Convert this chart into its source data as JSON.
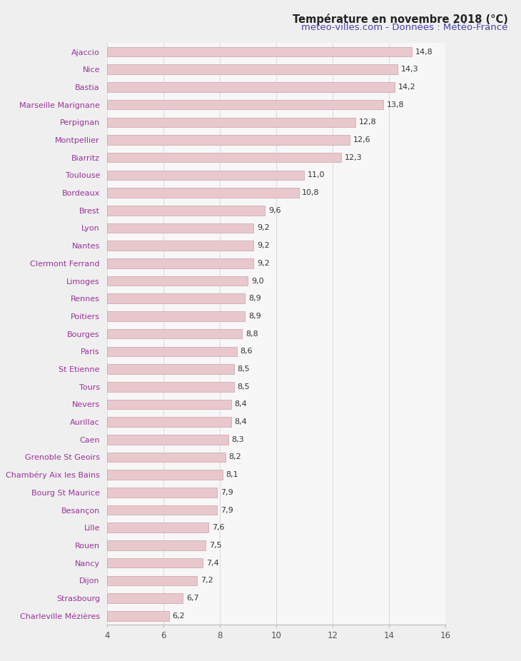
{
  "cities": [
    "Ajaccio",
    "Nice",
    "Bastia",
    "Marseille Marignane",
    "Perpignan",
    "Montpellier",
    "Biarritz",
    "Toulouse",
    "Bordeaux",
    "Brest",
    "Lyon",
    "Nantes",
    "Clermont Ferrand",
    "Limoges",
    "Rennes",
    "Poitiers",
    "Bourges",
    "Paris",
    "St Etienne",
    "Tours",
    "Nevers",
    "Aurillac",
    "Caen",
    "Grenoble St Geoirs",
    "Chambéry Aix les Bains",
    "Bourg St Maurice",
    "Besançon",
    "Lille",
    "Rouen",
    "Nancy",
    "Dijon",
    "Strasbourg",
    "Charleville Mézières"
  ],
  "values": [
    14.8,
    14.3,
    14.2,
    13.8,
    12.8,
    12.6,
    12.3,
    11.0,
    10.8,
    9.6,
    9.2,
    9.2,
    9.2,
    9.0,
    8.9,
    8.9,
    8.8,
    8.6,
    8.5,
    8.5,
    8.4,
    8.4,
    8.3,
    8.2,
    8.1,
    7.9,
    7.9,
    7.6,
    7.5,
    7.4,
    7.2,
    6.7,
    6.2
  ],
  "bar_color": "#e8c8cc",
  "bar_edge_color": "#c8a0a8",
  "title_line1": "Température en novembre 2018 (°C)",
  "title_line2": "meteo-villes.com - Données : Météo-France",
  "title_color": "#222222",
  "subtitle_color": "#4444aa",
  "label_color_city": "#993399",
  "label_color_value": "#333333",
  "background_color": "#efefef",
  "plot_bg_color": "#f7f7f7",
  "grid_color": "#dddddd",
  "xlim_min": 4,
  "xlim_max": 16,
  "xticks": [
    4,
    6,
    8,
    10,
    12,
    14,
    16
  ],
  "title_fontsize": 10.5,
  "subtitle_fontsize": 9.5,
  "city_fontsize": 8.0,
  "value_fontsize": 8.0,
  "tick_fontsize": 8.5
}
